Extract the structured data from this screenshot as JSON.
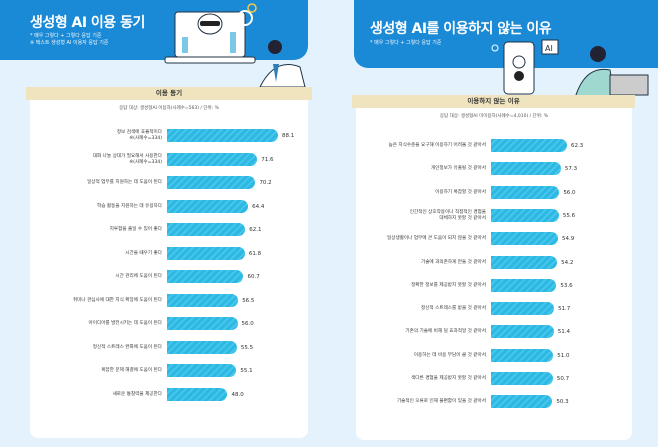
{
  "left": {
    "title": "생성형 AI 이용 동기",
    "notes": [
      "* 매우 그렇다 + 그렇다 응답 기준",
      "※ 텍스트 생성형 AI 이용자 응답 기준"
    ],
    "band": "이용 동기",
    "meta": "응답 대상: 생성형AI 이용자(사례수=563) / 단위: %"
  },
  "right": {
    "title": "생성형 AI를 이용하지 않는 이유",
    "notes": [
      "* 매우 그렇다 + 그렇다 응답 기준"
    ],
    "band": "이용하지 않는 이유",
    "meta": "응답 대상: 생성형AI 미이용자(사례수=4,010) / 단위: %",
    "ai_badge": "AI"
  },
  "colors": {
    "header": "#1a8ad6",
    "bar": "#2cb8e2",
    "band": "#efe4bd",
    "background": "#e3f2fc"
  },
  "chart_data": [
    {
      "type": "bar",
      "orientation": "horizontal",
      "unit": "%",
      "categories": [
        "정보 검색에 효율적이다\n※(사례수=334)",
        "대화 나눌 상대가 필요해서 사용한다\n※(사례수=334)",
        "일상적 업무를 지원하는 데 도움이 된다",
        "학습 활동을 지원하는 데 유용하다",
        "지루함을 줄일 수 있어 좋다",
        "시간을 때우기 좋다",
        "시간 관리에 도움이 된다",
        "취미나 관심사에 대한 지식 확장에 도움이 된다",
        "아이디어를 발전시키는 데 도움이 된다",
        "정신적 스트레스 완화에 도움이 된다",
        "복잡한 문제 해결에 도움이 된다",
        "새로운 통찰력을 제공한다"
      ],
      "values": [
        88.1,
        71.6,
        70.2,
        64.4,
        62.1,
        61.8,
        60.7,
        56.5,
        56.0,
        55.5,
        55.1,
        48.0
      ],
      "xlim": [
        0,
        100
      ]
    },
    {
      "type": "bar",
      "orientation": "horizontal",
      "unit": "%",
      "categories": [
        "높은 지식수준을 요구해 이용하기 어려울 것 같아서",
        "개인정보가 유출될 것 같아서",
        "이용하기 복잡할 것 같아서",
        "인간적인 상호작용이나 직접적인 경험을\n대체하지 못할 것 같아서",
        "일상생활이나 업무에 큰 도움이 되지 않을 것 같아서",
        "기술에 과의존하게 만들 것 같아서",
        "정확한 정보를 제공받지 못할 것 같아서",
        "정신적 스트레스를 받을 것 같아서",
        "기존의 기술에 비해 덜 효과적일 것 같아서",
        "이용하는 데 비용 부담이 클 것 같아서",
        "색다른 경험을 제공받지 못할 것 같아서",
        "기술적인 오류로 인해 불편함이 있을 것 같아서"
      ],
      "values": [
        62.3,
        57.3,
        56.0,
        55.6,
        54.9,
        54.2,
        53.6,
        51.7,
        51.4,
        51.0,
        50.7,
        50.3
      ],
      "xlim": [
        0,
        100
      ]
    }
  ]
}
